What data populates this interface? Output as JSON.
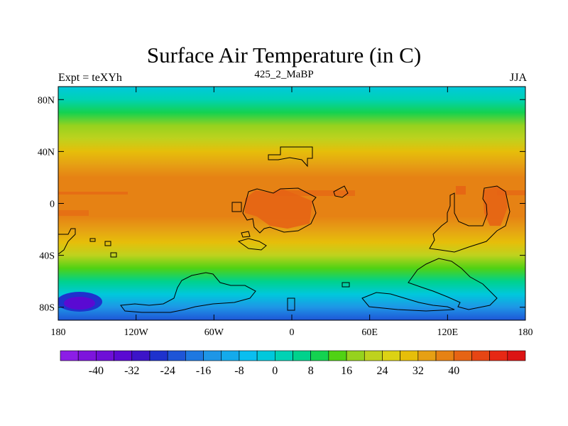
{
  "title": "Surface Air Temperature (in C)",
  "left_string": "Expt = teXYh",
  "center_string": "425_2_MaBP",
  "right_string": "JJA",
  "lat_ticks": [
    {
      "label": "80N",
      "value": 80
    },
    {
      "label": "40N",
      "value": 40
    },
    {
      "label": "0",
      "value": 0
    },
    {
      "label": "40S",
      "value": -40
    },
    {
      "label": "80S",
      "value": -80
    }
  ],
  "lon_ticks": [
    {
      "label": "180",
      "value": -180
    },
    {
      "label": "120W",
      "value": -120
    },
    {
      "label": "60W",
      "value": -60
    },
    {
      "label": "0",
      "value": 0
    },
    {
      "label": "60E",
      "value": 60
    },
    {
      "label": "120E",
      "value": 120
    },
    {
      "label": "180",
      "value": 180
    }
  ],
  "colorbar": {
    "colors": [
      "#8c1ee6",
      "#7d14dc",
      "#6e0fd7",
      "#5a0ad2",
      "#3c14c8",
      "#1e32cd",
      "#1e55d7",
      "#1e78e1",
      "#1e96e6",
      "#14aaeb",
      "#0abef0",
      "#00c8dc",
      "#00d2b4",
      "#00d28c",
      "#14d250",
      "#50d214",
      "#96d21e",
      "#bed21e",
      "#dcd214",
      "#e6be0a",
      "#e6a014",
      "#e68214",
      "#e66414",
      "#e64614",
      "#e62814",
      "#dc1414"
    ],
    "labels": [
      {
        "text": "-40",
        "boundary": 2
      },
      {
        "text": "-32",
        "boundary": 4
      },
      {
        "text": "-24",
        "boundary": 6
      },
      {
        "text": "-16",
        "boundary": 8
      },
      {
        "text": "-8",
        "boundary": 10
      },
      {
        "text": "0",
        "boundary": 12
      },
      {
        "text": "8",
        "boundary": 14
      },
      {
        "text": "16",
        "boundary": 16
      },
      {
        "text": "24",
        "boundary": 18
      },
      {
        "text": "32",
        "boundary": 20
      },
      {
        "text": "40",
        "boundary": 22
      }
    ]
  },
  "temperature_profile_by_latitude": [
    {
      "lat": 90,
      "temp": -6
    },
    {
      "lat": 80,
      "temp": -2
    },
    {
      "lat": 70,
      "temp": 6
    },
    {
      "lat": 60,
      "temp": 12
    },
    {
      "lat": 50,
      "temp": 18
    },
    {
      "lat": 40,
      "temp": 24
    },
    {
      "lat": 30,
      "temp": 29
    },
    {
      "lat": 20,
      "temp": 32
    },
    {
      "lat": 10,
      "temp": 34
    },
    {
      "lat": 0,
      "temp": 33
    },
    {
      "lat": -10,
      "temp": 32
    },
    {
      "lat": -20,
      "temp": 29
    },
    {
      "lat": -30,
      "temp": 24
    },
    {
      "lat": -40,
      "temp": 17
    },
    {
      "lat": -50,
      "temp": 10
    },
    {
      "lat": -60,
      "temp": 3
    },
    {
      "lat": -70,
      "temp": -6
    },
    {
      "lat": -80,
      "temp": -18
    },
    {
      "lat": -90,
      "temp": -26
    }
  ]
}
